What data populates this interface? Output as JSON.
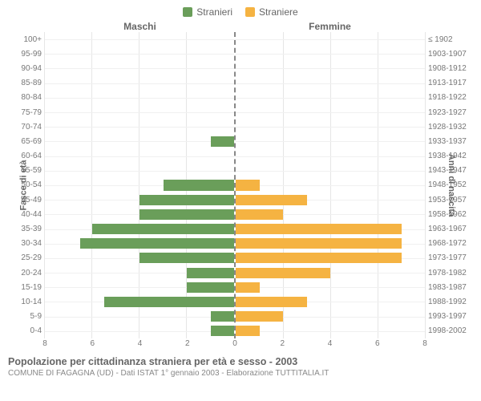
{
  "legend": [
    {
      "label": "Stranieri",
      "color": "#6a9e5a"
    },
    {
      "label": "Straniere",
      "color": "#f5b342"
    }
  ],
  "column_titles": {
    "left": "Maschi",
    "right": "Femmine"
  },
  "y_left_title": "Fasce di età",
  "y_right_title": "Anni di nascita",
  "xmax": 8,
  "x_ticks": [
    0,
    2,
    4,
    6,
    8
  ],
  "colors": {
    "male": "#6a9e5a",
    "female": "#f5b342",
    "grid": "#e6e6e6",
    "center_line": "#888888",
    "background": "#ffffff",
    "text": "#666666"
  },
  "rows": [
    {
      "age": "100+",
      "birth": "≤ 1902",
      "m": 0,
      "f": 0
    },
    {
      "age": "95-99",
      "birth": "1903-1907",
      "m": 0,
      "f": 0
    },
    {
      "age": "90-94",
      "birth": "1908-1912",
      "m": 0,
      "f": 0
    },
    {
      "age": "85-89",
      "birth": "1913-1917",
      "m": 0,
      "f": 0
    },
    {
      "age": "80-84",
      "birth": "1918-1922",
      "m": 0,
      "f": 0
    },
    {
      "age": "75-79",
      "birth": "1923-1927",
      "m": 0,
      "f": 0
    },
    {
      "age": "70-74",
      "birth": "1928-1932",
      "m": 0,
      "f": 0
    },
    {
      "age": "65-69",
      "birth": "1933-1937",
      "m": 1,
      "f": 0
    },
    {
      "age": "60-64",
      "birth": "1938-1942",
      "m": 0,
      "f": 0
    },
    {
      "age": "55-59",
      "birth": "1943-1947",
      "m": 0,
      "f": 0
    },
    {
      "age": "50-54",
      "birth": "1948-1952",
      "m": 3,
      "f": 1
    },
    {
      "age": "45-49",
      "birth": "1953-1957",
      "m": 4,
      "f": 3
    },
    {
      "age": "40-44",
      "birth": "1958-1962",
      "m": 4,
      "f": 2
    },
    {
      "age": "35-39",
      "birth": "1963-1967",
      "m": 6,
      "f": 7
    },
    {
      "age": "30-34",
      "birth": "1968-1972",
      "m": 6.5,
      "f": 7
    },
    {
      "age": "25-29",
      "birth": "1973-1977",
      "m": 4,
      "f": 7
    },
    {
      "age": "20-24",
      "birth": "1978-1982",
      "m": 2,
      "f": 4
    },
    {
      "age": "15-19",
      "birth": "1983-1987",
      "m": 2,
      "f": 1
    },
    {
      "age": "10-14",
      "birth": "1988-1992",
      "m": 5.5,
      "f": 3
    },
    {
      "age": "5-9",
      "birth": "1993-1997",
      "m": 1,
      "f": 2
    },
    {
      "age": "0-4",
      "birth": "1998-2002",
      "m": 1,
      "f": 1
    }
  ],
  "footer": {
    "title": "Popolazione per cittadinanza straniera per età e sesso - 2003",
    "subtitle": "COMUNE DI FAGAGNA (UD) - Dati ISTAT 1° gennaio 2003 - Elaborazione TUTTITALIA.IT"
  }
}
